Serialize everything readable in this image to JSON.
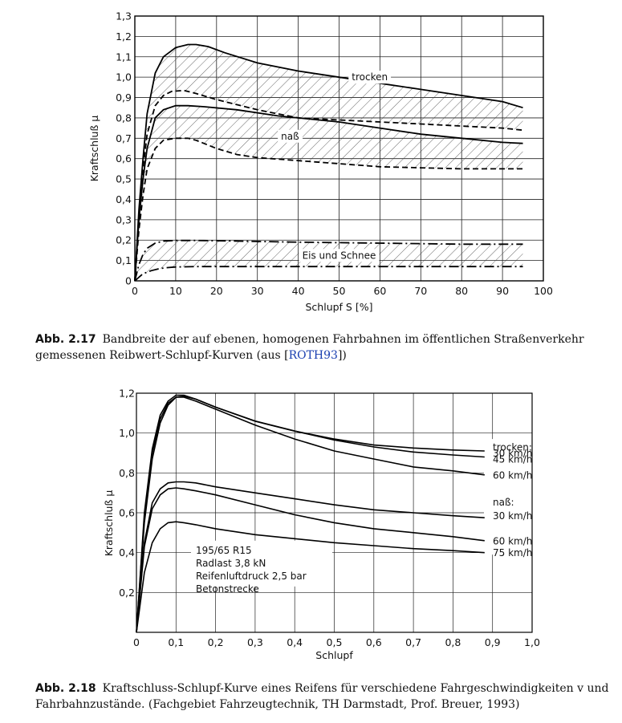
{
  "figure1": {
    "caption_label": "Abb. 2.17",
    "caption_text": "Bandbreite der auf ebenen, homogenen Fahrbahnen im öffentlichen Straßenverkehr gemessenen Reibwert-Schlupf-Kurven (aus [",
    "caption_ref": "ROTH93",
    "caption_end": "])"
  },
  "figure2": {
    "caption_label": "Abb. 2.18",
    "caption_text": "Kraftschluss-Schlupf-Kurve eines Reifens für verschiedene Fahrgeschwindigkeiten v und Fahrbahnzustände. (Fachgebiet Fahrzeugtechnik, TH Darmstadt, Prof. Breuer, 1993)"
  },
  "chart_data": [
    {
      "type": "line",
      "xlabel": "Schlupf S [%]",
      "ylabel": "Kraftschluß μ",
      "xlim": [
        0,
        100
      ],
      "ylim": [
        0,
        1.3
      ],
      "x_ticks": [
        "0",
        "10",
        "20",
        "30",
        "40",
        "50",
        "60",
        "70",
        "80",
        "90",
        "100"
      ],
      "y_ticks": [
        "0",
        "0,1",
        "0,2",
        "0,3",
        "0,4",
        "0,5",
        "0,6",
        "0,7",
        "0,8",
        "0,9",
        "1,0",
        "1,1",
        "1,2",
        "1,3"
      ],
      "grid": true,
      "annotations": [
        "trocken",
        "naß",
        "Eis und Schnee"
      ],
      "bands": [
        {
          "name": "trocken",
          "upper": "trocken-max",
          "lower": "trocken-min"
        },
        {
          "name": "naß",
          "upper": "nass-max",
          "lower": "nass-min"
        },
        {
          "name": "Eis und Schnee",
          "upper": "eis-max",
          "lower": "eis-min"
        }
      ],
      "series": [
        {
          "key": "trocken-max",
          "style": "solid",
          "x": [
            0,
            1,
            2,
            3,
            5,
            7,
            10,
            13,
            15,
            18,
            22,
            30,
            40,
            50,
            60,
            70,
            80,
            90,
            95
          ],
          "y": [
            0,
            0.35,
            0.6,
            0.82,
            1.02,
            1.1,
            1.145,
            1.16,
            1.16,
            1.15,
            1.12,
            1.07,
            1.03,
            1.0,
            0.97,
            0.94,
            0.91,
            0.88,
            0.85
          ]
        },
        {
          "key": "trocken-min",
          "style": "dashed",
          "x": [
            0,
            1,
            2,
            3,
            5,
            7,
            9,
            12,
            15,
            20,
            30,
            40,
            50,
            60,
            70,
            80,
            90,
            95
          ],
          "y": [
            0,
            0.32,
            0.55,
            0.72,
            0.86,
            0.91,
            0.93,
            0.935,
            0.92,
            0.89,
            0.84,
            0.8,
            0.79,
            0.78,
            0.77,
            0.76,
            0.75,
            0.74
          ]
        },
        {
          "key": "nass-max",
          "style": "solid",
          "x": [
            0,
            1,
            2,
            3,
            5,
            7,
            10,
            13,
            17,
            25,
            35,
            50,
            60,
            70,
            80,
            90,
            95
          ],
          "y": [
            0,
            0.3,
            0.5,
            0.65,
            0.8,
            0.84,
            0.86,
            0.86,
            0.855,
            0.84,
            0.81,
            0.78,
            0.75,
            0.72,
            0.7,
            0.68,
            0.675
          ]
        },
        {
          "key": "nass-min",
          "style": "dashed",
          "x": [
            0,
            1,
            2,
            3,
            5,
            7,
            10,
            13,
            15,
            20,
            25,
            30,
            40,
            50,
            60,
            70,
            80,
            90,
            95
          ],
          "y": [
            0,
            0.25,
            0.42,
            0.55,
            0.65,
            0.69,
            0.7,
            0.7,
            0.69,
            0.65,
            0.62,
            0.605,
            0.59,
            0.575,
            0.56,
            0.555,
            0.55,
            0.55,
            0.55
          ]
        },
        {
          "key": "eis-max",
          "style": "dashdot",
          "x": [
            0,
            1,
            2,
            3,
            5,
            7,
            10,
            15,
            20,
            40,
            60,
            80,
            95
          ],
          "y": [
            0,
            0.08,
            0.13,
            0.16,
            0.185,
            0.195,
            0.198,
            0.198,
            0.197,
            0.19,
            0.185,
            0.18,
            0.18
          ]
        },
        {
          "key": "eis-min",
          "style": "dashdot",
          "x": [
            0,
            2,
            4,
            6,
            8,
            10,
            15,
            20,
            40,
            60,
            80,
            95
          ],
          "y": [
            0,
            0.035,
            0.05,
            0.06,
            0.065,
            0.068,
            0.07,
            0.07,
            0.07,
            0.07,
            0.07,
            0.07
          ]
        }
      ]
    },
    {
      "type": "line",
      "xlabel": "Schlupf",
      "ylabel": "Kraftschluß μ",
      "xlim": [
        0,
        1.0
      ],
      "ylim": [
        0,
        1.2
      ],
      "x_ticks": [
        "0",
        "0,1",
        "0,2",
        "0,3",
        "0,4",
        "0,5",
        "0,6",
        "0,7",
        "0,8",
        "0,9",
        "1,0"
      ],
      "y_ticks": [
        "0,2",
        "0,4",
        "0,6",
        "0,8",
        "1,0",
        "1,2"
      ],
      "grid": true,
      "legend_labels": [
        "trocken:",
        "30 km/h",
        "45 km/h",
        "60 km/h",
        "naß:",
        "30 km/h",
        "60 km/h",
        "75 km/h"
      ],
      "note_lines": [
        "195/65 R15",
        "Radlast 3,8 kN",
        "Reifenluftdruck 2,5 bar",
        "Betonstrecke"
      ],
      "series": [
        {
          "name": "30 km/h",
          "group": "trocken",
          "x": [
            0,
            0.02,
            0.04,
            0.06,
            0.08,
            0.1,
            0.12,
            0.15,
            0.2,
            0.3,
            0.4,
            0.5,
            0.6,
            0.7,
            0.8,
            0.88
          ],
          "y": [
            0,
            0.6,
            0.92,
            1.09,
            1.16,
            1.19,
            1.19,
            1.17,
            1.13,
            1.06,
            1.01,
            0.97,
            0.94,
            0.925,
            0.915,
            0.91
          ]
        },
        {
          "name": "45 km/h",
          "group": "trocken",
          "x": [
            0,
            0.02,
            0.04,
            0.06,
            0.08,
            0.1,
            0.12,
            0.15,
            0.2,
            0.3,
            0.4,
            0.5,
            0.6,
            0.7,
            0.8,
            0.88
          ],
          "y": [
            0,
            0.58,
            0.9,
            1.07,
            1.15,
            1.18,
            1.185,
            1.17,
            1.13,
            1.06,
            1.01,
            0.965,
            0.93,
            0.905,
            0.89,
            0.88
          ]
        },
        {
          "name": "60 km/h",
          "group": "trocken",
          "x": [
            0,
            0.02,
            0.04,
            0.06,
            0.08,
            0.1,
            0.12,
            0.15,
            0.2,
            0.3,
            0.4,
            0.5,
            0.6,
            0.7,
            0.8,
            0.88
          ],
          "y": [
            0,
            0.55,
            0.87,
            1.05,
            1.14,
            1.18,
            1.18,
            1.16,
            1.12,
            1.04,
            0.97,
            0.91,
            0.87,
            0.83,
            0.81,
            0.79
          ]
        },
        {
          "name": "30 km/h",
          "group": "naß",
          "x": [
            0,
            0.02,
            0.04,
            0.06,
            0.08,
            0.1,
            0.12,
            0.15,
            0.2,
            0.3,
            0.4,
            0.5,
            0.6,
            0.7,
            0.8,
            0.88
          ],
          "y": [
            0,
            0.45,
            0.65,
            0.72,
            0.75,
            0.755,
            0.755,
            0.75,
            0.73,
            0.7,
            0.67,
            0.64,
            0.615,
            0.6,
            0.585,
            0.575
          ]
        },
        {
          "name": "60 km/h",
          "group": "naß",
          "x": [
            0,
            0.02,
            0.04,
            0.06,
            0.08,
            0.1,
            0.12,
            0.15,
            0.2,
            0.3,
            0.4,
            0.5,
            0.6,
            0.7,
            0.8,
            0.88
          ],
          "y": [
            0,
            0.43,
            0.62,
            0.69,
            0.72,
            0.725,
            0.72,
            0.71,
            0.69,
            0.64,
            0.59,
            0.55,
            0.52,
            0.5,
            0.48,
            0.46
          ]
        },
        {
          "name": "75 km/h",
          "group": "naß",
          "x": [
            0,
            0.02,
            0.04,
            0.06,
            0.08,
            0.1,
            0.12,
            0.15,
            0.2,
            0.3,
            0.4,
            0.5,
            0.6,
            0.7,
            0.8,
            0.88
          ],
          "y": [
            0,
            0.3,
            0.45,
            0.52,
            0.55,
            0.555,
            0.55,
            0.54,
            0.52,
            0.49,
            0.47,
            0.45,
            0.435,
            0.42,
            0.41,
            0.4
          ]
        }
      ]
    }
  ]
}
